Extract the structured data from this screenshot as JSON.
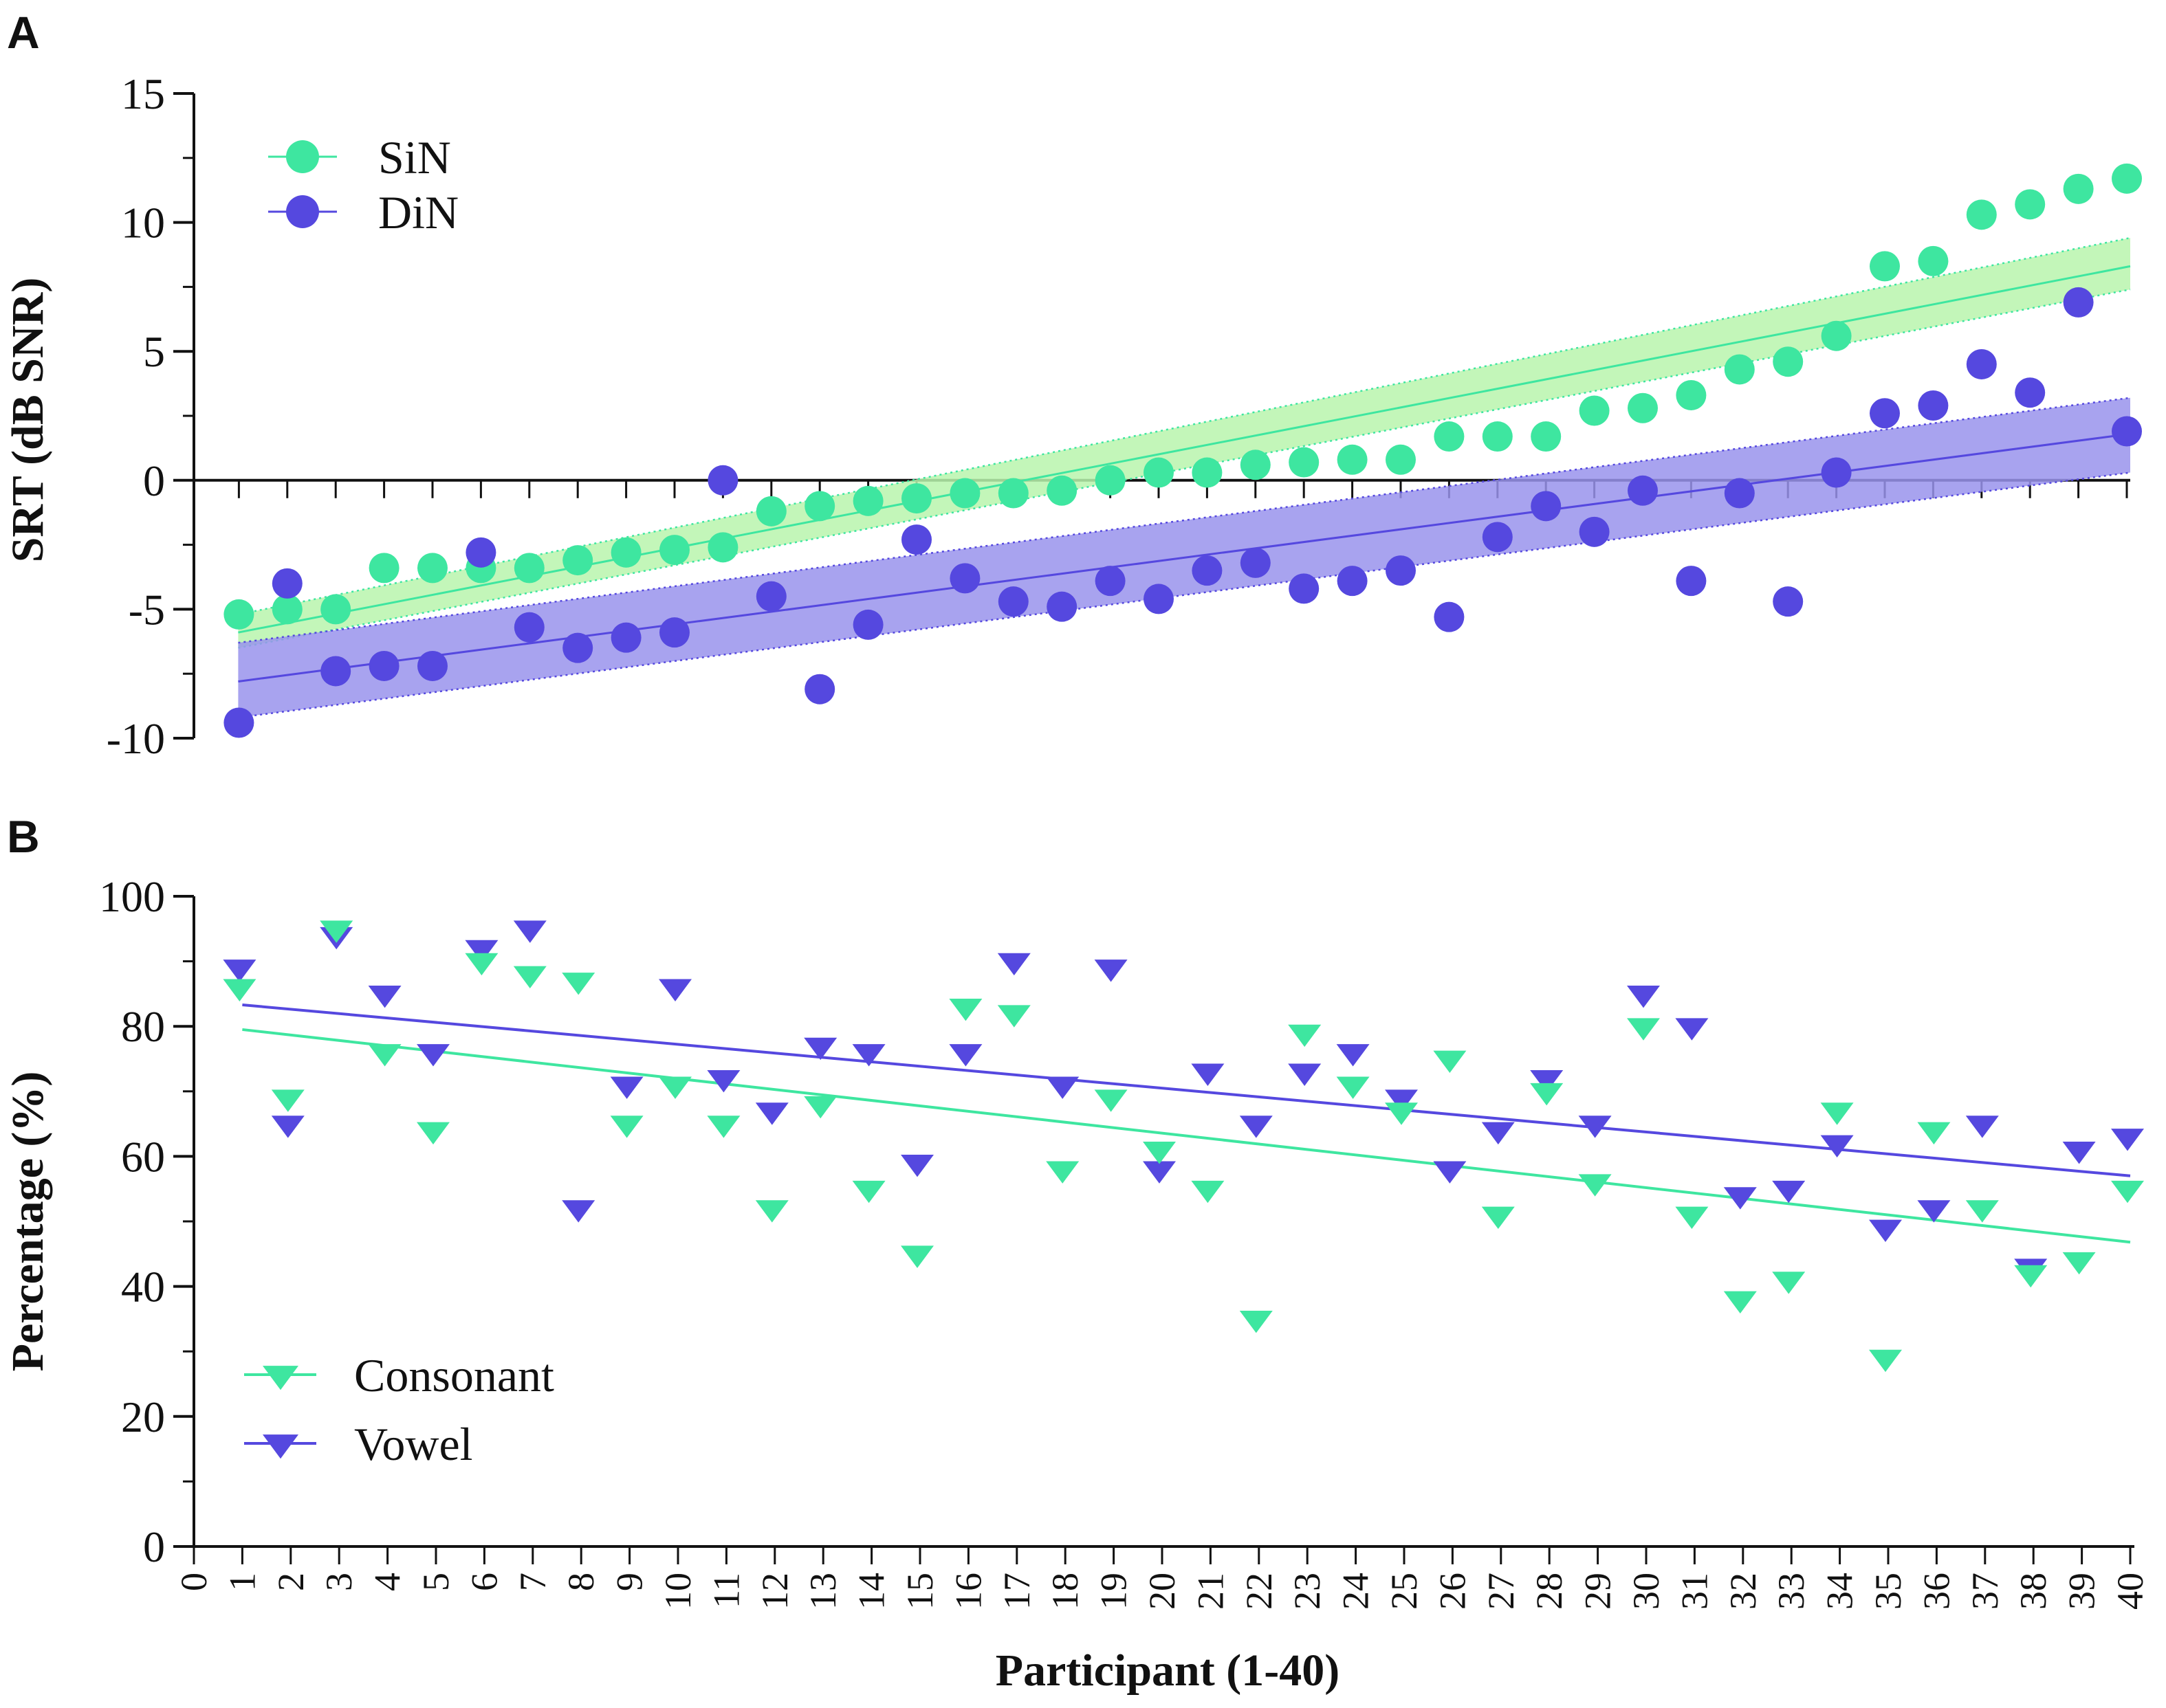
{
  "chart_data": [
    {
      "panel_label": "A",
      "type": "scatter",
      "ylabel": "SRT (dB SNR)",
      "xlabel": "",
      "ylim": [
        -10,
        15
      ],
      "yticks": [
        "-10",
        "-5",
        "0",
        "5",
        "10",
        "15"
      ],
      "xlim": [
        0,
        40
      ],
      "colors": {
        "SiN": "#3ee6a0",
        "DiN": "#5548df",
        "SiN_band": "#b8f5ad",
        "DiN_band": "#9993ec"
      },
      "legend_placement": "top-left",
      "series": [
        {
          "name": "SiN",
          "marker": "circle",
          "x": [
            1,
            2,
            3,
            4,
            5,
            6,
            7,
            8,
            9,
            10,
            11,
            12,
            13,
            14,
            15,
            16,
            17,
            18,
            19,
            20,
            21,
            22,
            23,
            24,
            25,
            26,
            27,
            28,
            29,
            30,
            31,
            32,
            33,
            34,
            35,
            36,
            37,
            38,
            39,
            40
          ],
          "values": [
            -5.2,
            -5.0,
            -5.0,
            -3.4,
            -3.4,
            -3.4,
            -3.4,
            -3.1,
            -2.8,
            -2.7,
            -2.6,
            -1.2,
            -1.0,
            -0.8,
            -0.7,
            -0.5,
            -0.5,
            -0.4,
            0.0,
            0.3,
            0.3,
            0.6,
            0.7,
            0.8,
            0.8,
            1.7,
            1.7,
            1.7,
            2.7,
            2.8,
            3.3,
            4.3,
            4.6,
            5.6,
            8.3,
            8.5,
            10.3,
            10.7,
            11.3,
            11.7
          ],
          "fit": {
            "x": [
              1,
              40
            ],
            "y": [
              -5.9,
              8.3
            ],
            "ci_lower": [
              -6.5,
              7.4
            ],
            "ci_upper": [
              -5.2,
              9.4
            ]
          }
        },
        {
          "name": "DiN",
          "marker": "circle",
          "x": [
            1,
            2,
            3,
            4,
            5,
            6,
            7,
            8,
            9,
            10,
            11,
            12,
            13,
            14,
            15,
            16,
            17,
            18,
            19,
            20,
            21,
            22,
            23,
            24,
            25,
            26,
            27,
            28,
            29,
            30,
            31,
            32,
            33,
            34,
            35,
            36,
            37,
            38,
            39,
            40
          ],
          "values": [
            -9.4,
            -4.0,
            -7.4,
            -7.2,
            -7.2,
            -2.8,
            -5.7,
            -6.5,
            -6.1,
            -5.9,
            0.0,
            -4.5,
            -8.1,
            -5.6,
            -2.3,
            -3.8,
            -4.7,
            -4.9,
            -3.9,
            -4.6,
            -3.5,
            -3.2,
            -4.2,
            -3.9,
            -3.5,
            -5.3,
            -2.2,
            -1.0,
            -2.0,
            -0.4,
            -3.9,
            -0.5,
            -4.7,
            0.3,
            2.6,
            2.9,
            4.5,
            3.4,
            6.9,
            1.9
          ],
          "fit": {
            "x": [
              1,
              40
            ],
            "y": [
              -7.8,
              1.8
            ],
            "ci_lower": [
              -9.2,
              0.3
            ],
            "ci_upper": [
              -6.3,
              3.2
            ]
          }
        }
      ]
    },
    {
      "panel_label": "B",
      "type": "scatter",
      "ylabel": "Percentage (%)",
      "xlabel": "Participant (1-40)",
      "ylim": [
        0,
        100
      ],
      "yticks": [
        "0",
        "20",
        "40",
        "60",
        "80",
        "100"
      ],
      "xlim": [
        0,
        40
      ],
      "xticks": [
        "0",
        "1",
        "2",
        "3",
        "4",
        "5",
        "6",
        "7",
        "8",
        "9",
        "10",
        "11",
        "12",
        "13",
        "14",
        "15",
        "16",
        "17",
        "18",
        "19",
        "20",
        "21",
        "22",
        "23",
        "24",
        "25",
        "26",
        "27",
        "28",
        "29",
        "30",
        "31",
        "32",
        "33",
        "34",
        "35",
        "36",
        "37",
        "38",
        "39",
        "40"
      ],
      "colors": {
        "Consonant": "#3ee6a0",
        "Vowel": "#5548df"
      },
      "legend_placement": "bottom-left",
      "series": [
        {
          "name": "Consonant",
          "marker": "triangle-down",
          "x": [
            1,
            2,
            3,
            4,
            5,
            6,
            7,
            8,
            9,
            10,
            11,
            12,
            13,
            14,
            15,
            16,
            17,
            18,
            19,
            20,
            21,
            22,
            23,
            24,
            25,
            26,
            27,
            28,
            29,
            30,
            31,
            32,
            33,
            34,
            35,
            36,
            37,
            38,
            39,
            40
          ],
          "values": [
            86,
            69,
            95,
            76,
            64,
            90,
            88,
            87,
            65,
            71,
            65,
            52,
            68,
            55,
            45,
            83,
            82,
            58,
            69,
            61,
            55,
            35,
            79,
            71,
            67,
            75,
            51,
            70,
            56,
            80,
            51,
            38,
            41,
            67,
            29,
            64,
            52,
            42,
            44,
            55
          ],
          "fit": {
            "x": [
              1,
              40
            ],
            "y": [
              79.5,
              46.8
            ]
          }
        },
        {
          "name": "Vowel",
          "marker": "triangle-down",
          "x": [
            1,
            2,
            3,
            4,
            5,
            6,
            7,
            8,
            9,
            10,
            11,
            12,
            13,
            14,
            15,
            16,
            17,
            18,
            19,
            20,
            21,
            22,
            23,
            24,
            25,
            26,
            27,
            28,
            29,
            30,
            31,
            32,
            33,
            34,
            35,
            36,
            37,
            38,
            39,
            40
          ],
          "values": [
            89,
            65,
            94,
            85,
            76,
            92,
            95,
            52,
            71,
            86,
            72,
            67,
            77,
            76,
            59,
            76,
            90,
            71,
            89,
            58,
            73,
            65,
            73,
            76,
            69,
            58,
            64,
            72,
            65,
            85,
            80,
            54,
            55,
            62,
            49,
            52,
            65,
            43,
            61,
            63
          ],
          "fit": {
            "x": [
              1,
              40
            ],
            "y": [
              83.3,
              57.0
            ]
          }
        }
      ]
    }
  ]
}
